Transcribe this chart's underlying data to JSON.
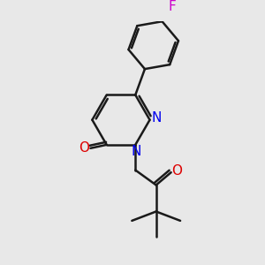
{
  "background_color": "#e8e8e8",
  "bond_color": "#1a1a1a",
  "N_color": "#0000ee",
  "O_color": "#dd0000",
  "F_color": "#cc00cc",
  "line_width": 1.8,
  "font_size": 11,
  "fig_width": 3.0,
  "fig_height": 3.0,
  "dpi": 100,
  "xlim": [
    -1.5,
    8.5
  ],
  "ylim": [
    -1.0,
    9.5
  ]
}
